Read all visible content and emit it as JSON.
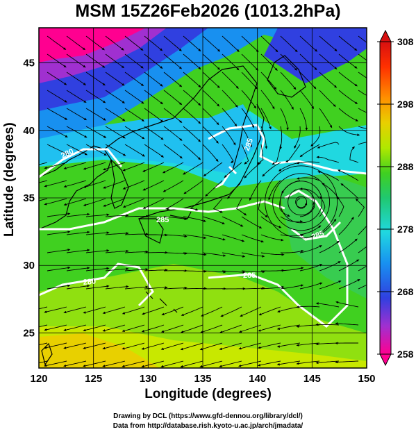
{
  "title": "MSM 15Z26Feb2026 (1013.2hPa)",
  "axes": {
    "xlabel": "Longitude (degrees)",
    "ylabel": "Latitude  (degrees)",
    "xlim": [
      120,
      150
    ],
    "ylim": [
      22.4,
      47.6
    ],
    "xticks": [
      "120",
      "125",
      "130",
      "135",
      "140",
      "145",
      "150"
    ],
    "yticks": [
      "25",
      "30",
      "35",
      "40",
      "45"
    ]
  },
  "colorbar": {
    "range": [
      258,
      308
    ],
    "ticks": [
      "308",
      "298",
      "288",
      "278",
      "268",
      "258"
    ],
    "palette": [
      "#ff0090",
      "#a030d0",
      "#3040e0",
      "#1890f0",
      "#20d8e0",
      "#20c870",
      "#40d020",
      "#b0e800",
      "#e8d000",
      "#ff9000",
      "#ff3000",
      "#d81010"
    ]
  },
  "contour_labels": [
    "280",
    "280",
    "285",
    "285",
    "285",
    "285"
  ],
  "credits": {
    "line1": "Drawing by DCL (https://www.gfd-dennou.org/library/dcl/)",
    "line2": "Data from http://database.rish.kyoto-u.ac.jp/arch/jmadata/"
  },
  "low_center": {
    "lon": 144.0,
    "lat": 34.7
  }
}
